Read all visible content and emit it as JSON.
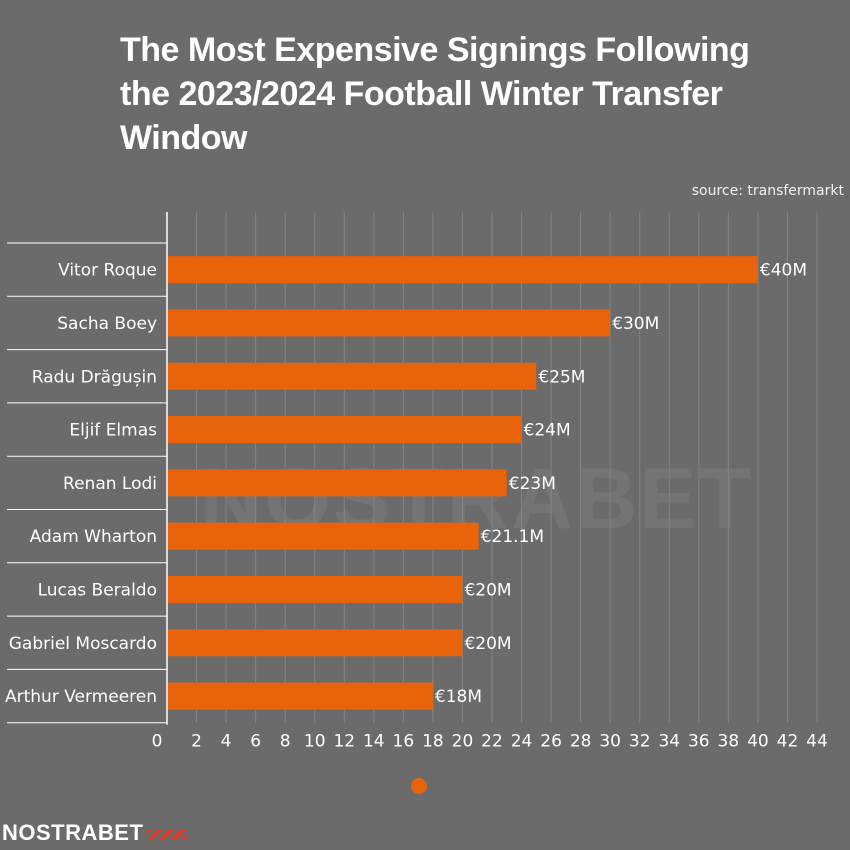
{
  "title": "The Most Expensive Signings Following the 2023/2024 Football Winter Transfer Window",
  "source": "source: transfermarkt",
  "watermark": "NOSTRABET",
  "logo": "NOSTRABET",
  "colors": {
    "background": "#6b6b6b",
    "bar": "#e8630a",
    "text": "#ffffff"
  },
  "chart_data": {
    "type": "bar",
    "orientation": "horizontal",
    "categories": [
      "Vitor Roque",
      "Sacha Boey",
      "Radu Drăgușin",
      "Eljif Elmas",
      "Renan Lodi",
      "Adam Wharton",
      "Lucas Beraldo",
      "Gabriel Moscardo",
      "Arthur Vermeeren"
    ],
    "values": [
      40,
      30,
      25,
      24,
      23,
      21.1,
      20,
      20,
      18
    ],
    "data_labels": [
      "€40M",
      "€30M",
      "€25M",
      "€24M",
      "€23M",
      "€21.1M",
      "€20M",
      "€20M",
      "€18M"
    ],
    "xticks": [
      0,
      2,
      4,
      6,
      8,
      10,
      12,
      14,
      16,
      18,
      20,
      22,
      24,
      26,
      28,
      30,
      32,
      34,
      36,
      38,
      40,
      42,
      44
    ],
    "xlim": [
      0,
      44
    ],
    "grid": true,
    "legend": "none"
  }
}
